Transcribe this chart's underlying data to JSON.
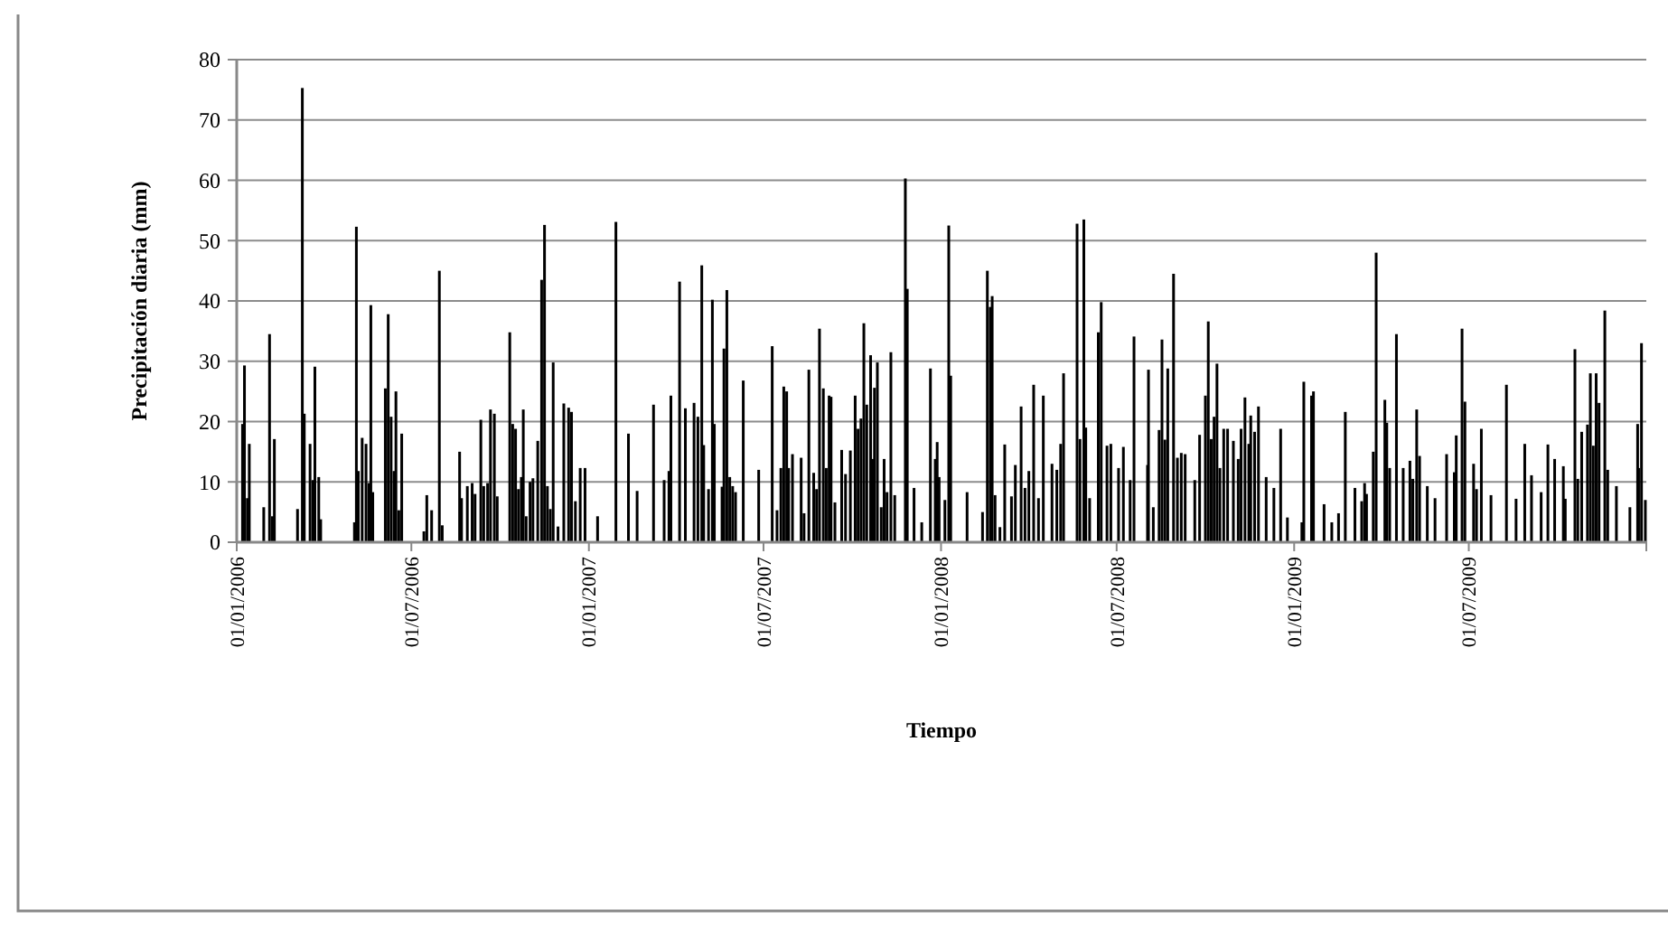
{
  "chart_data": {
    "type": "bar",
    "xlabel": "Tiempo",
    "ylabel": "Precipitación diaria (mm)",
    "color": "#000000",
    "xlim": [
      "2006-01-01",
      "2010-01-01"
    ],
    "xticks": [
      {
        "value": "2006-01-01",
        "label": "01/01/2006"
      },
      {
        "value": "2006-07-01",
        "label": "01/07/2006"
      },
      {
        "value": "2007-01-01",
        "label": "01/01/2007"
      },
      {
        "value": "2007-07-01",
        "label": "01/07/2007"
      },
      {
        "value": "2008-01-01",
        "label": "01/01/2008"
      },
      {
        "value": "2008-07-01",
        "label": "01/07/2008"
      },
      {
        "value": "2009-01-01",
        "label": "01/01/2009"
      },
      {
        "value": "2009-07-01",
        "label": "01/07/2009"
      },
      {
        "value": "2010-01-01",
        "label": null
      }
    ],
    "ylim": [
      0,
      80
    ],
    "yticks": [
      0,
      10,
      20,
      30,
      40,
      50,
      60,
      70,
      80
    ],
    "grid": "y",
    "x": [
      "2006-01-07",
      "2006-01-09",
      "2006-01-12",
      "2006-01-14",
      "2006-01-29",
      "2006-02-04",
      "2006-02-07",
      "2006-02-09",
      "2006-03-05",
      "2006-03-10",
      "2006-03-12",
      "2006-03-18",
      "2006-03-21",
      "2006-03-23",
      "2006-03-27",
      "2006-03-29",
      "2006-05-03",
      "2006-05-05",
      "2006-05-07",
      "2006-05-11",
      "2006-05-15",
      "2006-05-18",
      "2006-05-20",
      "2006-05-22",
      "2006-06-04",
      "2006-06-07",
      "2006-06-10",
      "2006-06-13",
      "2006-06-15",
      "2006-06-18",
      "2006-06-21",
      "2006-07-14",
      "2006-07-17",
      "2006-07-22",
      "2006-07-30",
      "2006-08-02",
      "2006-08-20",
      "2006-08-22",
      "2006-08-28",
      "2006-09-02",
      "2006-09-05",
      "2006-09-11",
      "2006-09-14",
      "2006-09-18",
      "2006-09-21",
      "2006-09-25",
      "2006-09-28",
      "2006-10-11",
      "2006-10-14",
      "2006-10-17",
      "2006-10-20",
      "2006-10-23",
      "2006-10-25",
      "2006-10-28",
      "2006-11-01",
      "2006-11-04",
      "2006-11-09",
      "2006-11-13",
      "2006-11-16",
      "2006-11-19",
      "2006-11-22",
      "2006-11-25",
      "2006-11-30",
      "2006-12-06",
      "2006-12-11",
      "2006-12-14",
      "2006-12-18",
      "2006-12-23",
      "2006-12-28",
      "2007-01-10",
      "2007-01-29",
      "2007-02-11",
      "2007-02-20",
      "2007-03-09",
      "2007-03-20",
      "2007-03-25",
      "2007-03-27",
      "2007-04-05",
      "2007-04-11",
      "2007-04-20",
      "2007-04-24",
      "2007-04-28",
      "2007-04-30",
      "2007-05-05",
      "2007-05-09",
      "2007-05-11",
      "2007-05-19",
      "2007-05-21",
      "2007-05-24",
      "2007-05-27",
      "2007-05-30",
      "2007-06-02",
      "2007-06-10",
      "2007-06-26",
      "2007-07-10",
      "2007-07-15",
      "2007-07-19",
      "2007-07-22",
      "2007-07-25",
      "2007-07-27",
      "2007-07-31",
      "2007-08-09",
      "2007-08-12",
      "2007-08-17",
      "2007-08-22",
      "2007-08-25",
      "2007-08-28",
      "2007-09-01",
      "2007-09-04",
      "2007-09-07",
      "2007-09-09",
      "2007-09-13",
      "2007-09-20",
      "2007-09-24",
      "2007-09-29",
      "2007-10-04",
      "2007-10-07",
      "2007-10-10",
      "2007-10-13",
      "2007-10-16",
      "2007-10-20",
      "2007-10-22",
      "2007-10-24",
      "2007-10-27",
      "2007-10-31",
      "2007-11-03",
      "2007-11-06",
      "2007-11-10",
      "2007-11-14",
      "2007-11-25",
      "2007-11-27",
      "2007-12-04",
      "2007-12-12",
      "2007-12-21",
      "2007-12-26",
      "2007-12-28",
      "2007-12-30",
      "2008-01-05",
      "2008-01-09",
      "2008-01-11",
      "2008-01-28",
      "2008-02-13",
      "2008-02-18",
      "2008-02-21",
      "2008-02-23",
      "2008-02-26",
      "2008-03-02",
      "2008-03-07",
      "2008-03-14",
      "2008-03-18",
      "2008-03-24",
      "2008-03-28",
      "2008-04-01",
      "2008-04-06",
      "2008-04-11",
      "2008-04-16",
      "2008-04-25",
      "2008-04-30",
      "2008-05-04",
      "2008-05-07",
      "2008-05-21",
      "2008-05-24",
      "2008-05-28",
      "2008-05-30",
      "2008-06-03",
      "2008-06-12",
      "2008-06-15",
      "2008-06-21",
      "2008-06-25",
      "2008-07-03",
      "2008-07-08",
      "2008-07-15",
      "2008-07-19",
      "2008-08-02",
      "2008-08-03",
      "2008-08-08",
      "2008-08-14",
      "2008-08-17",
      "2008-08-20",
      "2008-08-23",
      "2008-08-29",
      "2008-09-02",
      "2008-09-06",
      "2008-09-10",
      "2008-09-20",
      "2008-09-25",
      "2008-10-01",
      "2008-10-04",
      "2008-10-07",
      "2008-10-10",
      "2008-10-13",
      "2008-10-16",
      "2008-10-20",
      "2008-10-24",
      "2008-10-30",
      "2008-11-04",
      "2008-11-07",
      "2008-11-11",
      "2008-11-15",
      "2008-11-17",
      "2008-11-21",
      "2008-11-25",
      "2008-12-03",
      "2008-12-11",
      "2008-12-18",
      "2008-12-25",
      "2009-01-09",
      "2009-01-11",
      "2009-01-19",
      "2009-01-21",
      "2009-02-01",
      "2009-02-09",
      "2009-02-16",
      "2009-02-23",
      "2009-03-05",
      "2009-03-12",
      "2009-03-15",
      "2009-03-17",
      "2009-03-24",
      "2009-03-27",
      "2009-04-05",
      "2009-04-07",
      "2009-04-10",
      "2009-04-17",
      "2009-04-24",
      "2009-05-01",
      "2009-05-04",
      "2009-05-08",
      "2009-05-11",
      "2009-05-19",
      "2009-05-27",
      "2009-06-08",
      "2009-06-16",
      "2009-06-18",
      "2009-06-24",
      "2009-06-27",
      "2009-07-06",
      "2009-07-09",
      "2009-07-14",
      "2009-07-24",
      "2009-08-09",
      "2009-08-19",
      "2009-08-28",
      "2009-09-04",
      "2009-09-14",
      "2009-09-21",
      "2009-09-28",
      "2009-10-07",
      "2009-10-09",
      "2009-10-19",
      "2009-10-22",
      "2009-10-26",
      "2009-11-01",
      "2009-11-04",
      "2009-11-07",
      "2009-11-10",
      "2009-11-13",
      "2009-11-19",
      "2009-11-22",
      "2009-12-01",
      "2009-12-15",
      "2009-12-23",
      "2009-12-24",
      "2009-12-27",
      "2009-12-31"
    ],
    "values": [
      19.6,
      29.3,
      7.3,
      16.3,
      5.8,
      34.5,
      4.3,
      17.1,
      5.5,
      75.3,
      21.3,
      16.3,
      10.3,
      29.1,
      10.8,
      3.8,
      3.3,
      52.3,
      11.8,
      17.3,
      16.3,
      9.8,
      39.3,
      8.3,
      25.5,
      37.8,
      20.8,
      11.8,
      25,
      5.3,
      18,
      1.8,
      7.8,
      5.3,
      45,
      2.8,
      15,
      7.3,
      9.3,
      9.8,
      8,
      20.3,
      9.3,
      9.8,
      22,
      21.3,
      7.6,
      34.8,
      19.6,
      18.8,
      8.8,
      10.8,
      22,
      4.3,
      10,
      10.6,
      16.8,
      43.5,
      52.6,
      9.3,
      5.5,
      29.8,
      2.6,
      23,
      22.3,
      21.6,
      6.8,
      12.3,
      12.3,
      4.3,
      53.1,
      18,
      8.5,
      22.8,
      10.3,
      11.8,
      24.3,
      43.2,
      22.2,
      23.1,
      20.8,
      45.9,
      16.1,
      8.8,
      40.2,
      19.6,
      9.2,
      32.1,
      41.8,
      10.8,
      9.3,
      8.3,
      26.8,
      12,
      32.5,
      5.3,
      12.3,
      25.8,
      25,
      12.3,
      14.6,
      14,
      4.8,
      28.6,
      11.5,
      8.8,
      35.4,
      25.5,
      12.3,
      24.3,
      24.1,
      6.6,
      15.3,
      11.3,
      15.2,
      24.3,
      18.8,
      20.5,
      36.3,
      22.8,
      31,
      13.8,
      25.6,
      29.8,
      5.8,
      13.8,
      8.3,
      31.5,
      7.8,
      60.3,
      42,
      9,
      3.3,
      28.8,
      13.8,
      16.6,
      10.8,
      7,
      52.5,
      27.6,
      8.3,
      5,
      45,
      39,
      40.8,
      7.8,
      2.5,
      16.2,
      7.6,
      12.8,
      22.5,
      9,
      11.8,
      26.1,
      7.3,
      24.3,
      13,
      12,
      16.3,
      28,
      52.8,
      17.1,
      53.5,
      19,
      7.3,
      34.8,
      39.8,
      16,
      16.3,
      12.3,
      15.8,
      10.3,
      34.1,
      12.8,
      28.6,
      5.8,
      18.6,
      33.6,
      17,
      28.8,
      44.5,
      14,
      14.8,
      14.6,
      10.3,
      17.8,
      24.3,
      36.6,
      17.1,
      20.8,
      29.6,
      12.3,
      18.8,
      18.8,
      16.8,
      13.8,
      18.8,
      24,
      16.3,
      21,
      18.3,
      22.5,
      10.8,
      9,
      18.8,
      4.1,
      3.3,
      26.6,
      24.3,
      25,
      6.3,
      3.3,
      4.8,
      21.6,
      9,
      6.8,
      9.8,
      8,
      15,
      48,
      23.6,
      19.8,
      12.3,
      34.5,
      12.3,
      13.5,
      10.5,
      22,
      14.3,
      9.3,
      7.3,
      14.6,
      11.6,
      17.7,
      35.4,
      23.3,
      13,
      8.8,
      18.8,
      7.8,
      26.1,
      7.2,
      16.3,
      11.1,
      8.3,
      16.2,
      13.8,
      12.6,
      7.2,
      32,
      10.5,
      18.3,
      19.5,
      28,
      16,
      28,
      23.1,
      38.4,
      12,
      9.3,
      5.8,
      19.6,
      12.3,
      33,
      7
    ]
  }
}
